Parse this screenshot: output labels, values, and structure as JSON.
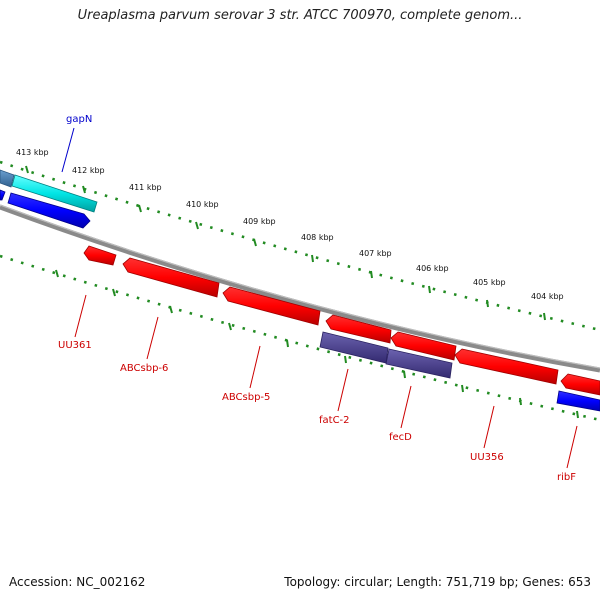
{
  "title": "Ureaplasma parvum serovar 3 str. ATCC 700970, complete genom...",
  "footer": {
    "accession": "Accession: NC_002162",
    "summary": "Topology: circular; Length: 751,719 bp; Genes: 653"
  },
  "colors": {
    "forward_gene": "#0000ff",
    "forward_highlight": "#00e5e5",
    "forward_other": "#4682b4",
    "reverse_gene": "#ff0000",
    "reverse_other": "#483d8b",
    "backbone": "#808080",
    "tick": "#228b22",
    "forward_label": "#0000cc",
    "reverse_label": "#cc0000"
  },
  "kbp_labels": [
    "413 kbp",
    "412 kbp",
    "411 kbp",
    "410 kbp",
    "409 kbp",
    "408 kbp",
    "407 kbp",
    "406 kbp",
    "405 kbp",
    "404 kbp"
  ],
  "gene_labels": {
    "gapN": "gapN",
    "UU361": "UU361",
    "ABCsbp6": "ABCsbp-6",
    "ABCsbp5": "ABCsbp-5",
    "fatC2": "fatC-2",
    "fecD": "fecD",
    "UU356": "UU356",
    "ribF": "ribF"
  }
}
